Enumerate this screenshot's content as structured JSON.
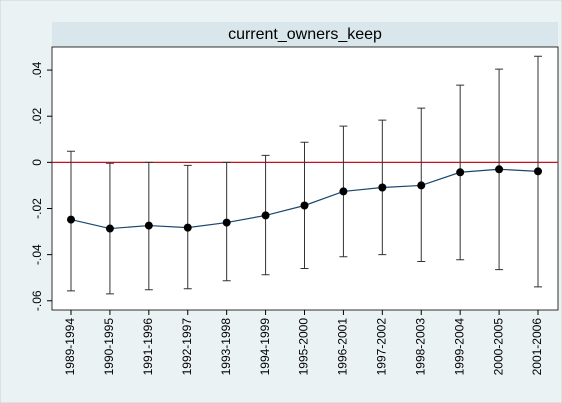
{
  "chart_data": {
    "type": "errorbar-line",
    "title": "current_owners_keep",
    "categories": [
      "1989-1994",
      "1990-1995",
      "1991-1996",
      "1992-1997",
      "1993-1998",
      "1994-1999",
      "1995-2000",
      "1996-2001",
      "1997-2002",
      "1998-2003",
      "1999-2004",
      "2000-2005",
      "2001-2006"
    ],
    "series": [
      {
        "color": "#1a476f",
        "values": [
          -0.0248,
          -0.0287,
          -0.0274,
          -0.0283,
          -0.0261,
          -0.023,
          -0.0187,
          -0.0126,
          -0.0109,
          -0.01,
          -0.0043,
          -0.003,
          -0.0039
        ],
        "lower": [
          -0.0557,
          -0.057,
          -0.0552,
          -0.0548,
          -0.0513,
          -0.0487,
          -0.046,
          -0.0409,
          -0.04,
          -0.043,
          -0.0422,
          -0.0465,
          -0.054
        ],
        "upper": [
          0.0048,
          -0.0004,
          0,
          -0.0013,
          0,
          0.003,
          0.0087,
          0.0157,
          0.0183,
          0.0235,
          0.0335,
          0.0404,
          0.046
        ]
      }
    ],
    "reference_line": 0,
    "reference_color": "#c0141e",
    "ylim": [
      -0.064,
      0.05
    ],
    "yticks": [
      {
        "value": -0.06,
        "label": "-.06"
      },
      {
        "value": -0.04,
        "label": "-.04"
      },
      {
        "value": -0.02,
        "label": "-.02"
      },
      0,
      {
        "value": 0.02,
        "label": ".02"
      },
      {
        "value": 0.04,
        "label": ".04"
      }
    ],
    "grid": false
  }
}
